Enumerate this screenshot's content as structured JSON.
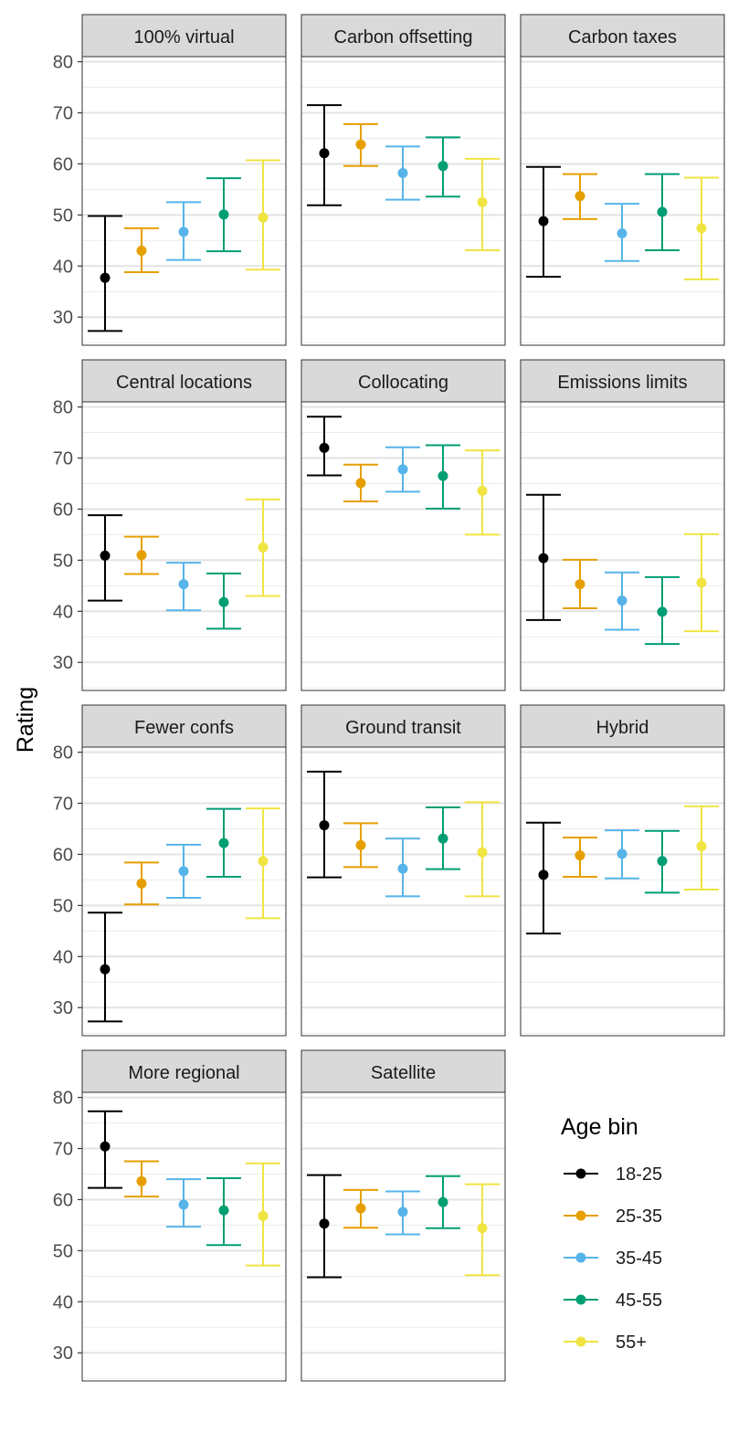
{
  "chart_data": {
    "type": "errorbar-facet",
    "ylabel": "Rating",
    "xlabel": "",
    "ylim": [
      24.5,
      81
    ],
    "yticks": [
      30,
      40,
      50,
      60,
      70,
      80
    ],
    "grid": true,
    "legend": {
      "title": "Age bin",
      "position": "bottom-right",
      "entries": [
        "18-25",
        "25-35",
        "35-45",
        "45-55",
        "55+"
      ]
    },
    "series_colors": [
      "#000000",
      "#E69F00",
      "#56B4E9",
      "#009E73",
      "#F0E442"
    ],
    "panels": [
      {
        "title": "100% virtual",
        "series": [
          {
            "name": "18-25",
            "mean": 37.7,
            "lo": 27.3,
            "hi": 49.8
          },
          {
            "name": "25-35",
            "mean": 43.0,
            "lo": 38.8,
            "hi": 47.4
          },
          {
            "name": "35-45",
            "mean": 46.7,
            "lo": 41.2,
            "hi": 52.5
          },
          {
            "name": "45-55",
            "mean": 50.1,
            "lo": 42.9,
            "hi": 57.2
          },
          {
            "name": "55+",
            "mean": 49.5,
            "lo": 39.3,
            "hi": 60.7
          }
        ]
      },
      {
        "title": "Carbon offsetting",
        "series": [
          {
            "name": "18-25",
            "mean": 62.1,
            "lo": 51.9,
            "hi": 71.5
          },
          {
            "name": "25-35",
            "mean": 63.8,
            "lo": 59.6,
            "hi": 67.8
          },
          {
            "name": "35-45",
            "mean": 58.2,
            "lo": 53.0,
            "hi": 63.4
          },
          {
            "name": "45-55",
            "mean": 59.6,
            "lo": 53.6,
            "hi": 65.2
          },
          {
            "name": "55+",
            "mean": 52.5,
            "lo": 43.1,
            "hi": 61.0
          }
        ]
      },
      {
        "title": "Carbon taxes",
        "series": [
          {
            "name": "18-25",
            "mean": 48.8,
            "lo": 37.9,
            "hi": 59.4
          },
          {
            "name": "25-35",
            "mean": 53.7,
            "lo": 49.2,
            "hi": 58.0
          },
          {
            "name": "35-45",
            "mean": 46.4,
            "lo": 41.0,
            "hi": 52.2
          },
          {
            "name": "45-55",
            "mean": 50.6,
            "lo": 43.1,
            "hi": 58.0
          },
          {
            "name": "55+",
            "mean": 47.4,
            "lo": 37.4,
            "hi": 57.3
          }
        ]
      },
      {
        "title": "Central locations",
        "series": [
          {
            "name": "18-25",
            "mean": 50.9,
            "lo": 42.1,
            "hi": 58.8
          },
          {
            "name": "25-35",
            "mean": 51.0,
            "lo": 47.3,
            "hi": 54.6
          },
          {
            "name": "35-45",
            "mean": 45.3,
            "lo": 40.2,
            "hi": 49.5
          },
          {
            "name": "45-55",
            "mean": 41.8,
            "lo": 36.6,
            "hi": 47.4
          },
          {
            "name": "55+",
            "mean": 52.5,
            "lo": 43.0,
            "hi": 61.9
          }
        ]
      },
      {
        "title": "Collocating",
        "series": [
          {
            "name": "18-25",
            "mean": 72.0,
            "lo": 66.6,
            "hi": 78.1
          },
          {
            "name": "25-35",
            "mean": 65.1,
            "lo": 61.5,
            "hi": 68.7
          },
          {
            "name": "35-45",
            "mean": 67.8,
            "lo": 63.4,
            "hi": 72.1
          },
          {
            "name": "45-55",
            "mean": 66.5,
            "lo": 60.1,
            "hi": 72.5
          },
          {
            "name": "55+",
            "mean": 63.6,
            "lo": 55.0,
            "hi": 71.5
          }
        ]
      },
      {
        "title": "Emissions limits",
        "series": [
          {
            "name": "18-25",
            "mean": 50.4,
            "lo": 38.3,
            "hi": 62.8
          },
          {
            "name": "25-35",
            "mean": 45.3,
            "lo": 40.6,
            "hi": 50.1
          },
          {
            "name": "35-45",
            "mean": 42.1,
            "lo": 36.4,
            "hi": 47.6
          },
          {
            "name": "45-55",
            "mean": 39.9,
            "lo": 33.6,
            "hi": 46.7
          },
          {
            "name": "55+",
            "mean": 45.6,
            "lo": 36.1,
            "hi": 55.1
          }
        ]
      },
      {
        "title": "Fewer confs",
        "series": [
          {
            "name": "18-25",
            "mean": 37.5,
            "lo": 27.3,
            "hi": 48.6
          },
          {
            "name": "25-35",
            "mean": 54.3,
            "lo": 50.2,
            "hi": 58.4
          },
          {
            "name": "35-45",
            "mean": 56.7,
            "lo": 51.5,
            "hi": 61.9
          },
          {
            "name": "45-55",
            "mean": 62.2,
            "lo": 55.6,
            "hi": 68.9
          },
          {
            "name": "55+",
            "mean": 58.7,
            "lo": 47.5,
            "hi": 69.0
          }
        ]
      },
      {
        "title": "Ground transit",
        "series": [
          {
            "name": "18-25",
            "mean": 65.7,
            "lo": 55.5,
            "hi": 76.2
          },
          {
            "name": "25-35",
            "mean": 61.8,
            "lo": 57.5,
            "hi": 66.1
          },
          {
            "name": "35-45",
            "mean": 57.2,
            "lo": 51.8,
            "hi": 63.1
          },
          {
            "name": "45-55",
            "mean": 63.1,
            "lo": 57.1,
            "hi": 69.2
          },
          {
            "name": "55+",
            "mean": 60.4,
            "lo": 51.8,
            "hi": 70.2
          }
        ]
      },
      {
        "title": "Hybrid",
        "series": [
          {
            "name": "18-25",
            "mean": 56.0,
            "lo": 44.5,
            "hi": 66.2
          },
          {
            "name": "25-35",
            "mean": 59.8,
            "lo": 55.6,
            "hi": 63.3
          },
          {
            "name": "35-45",
            "mean": 60.1,
            "lo": 55.3,
            "hi": 64.7
          },
          {
            "name": "45-55",
            "mean": 58.7,
            "lo": 52.5,
            "hi": 64.6
          },
          {
            "name": "55+",
            "mean": 61.6,
            "lo": 53.1,
            "hi": 69.4
          }
        ]
      },
      {
        "title": "More regional",
        "series": [
          {
            "name": "18-25",
            "mean": 70.4,
            "lo": 62.3,
            "hi": 77.3
          },
          {
            "name": "25-35",
            "mean": 63.6,
            "lo": 60.6,
            "hi": 67.5
          },
          {
            "name": "35-45",
            "mean": 59.0,
            "lo": 54.7,
            "hi": 64.0
          },
          {
            "name": "45-55",
            "mean": 57.9,
            "lo": 51.1,
            "hi": 64.2
          },
          {
            "name": "55+",
            "mean": 56.8,
            "lo": 47.1,
            "hi": 67.1
          }
        ]
      },
      {
        "title": "Satellite",
        "series": [
          {
            "name": "18-25",
            "mean": 55.3,
            "lo": 44.8,
            "hi": 64.8
          },
          {
            "name": "25-35",
            "mean": 58.3,
            "lo": 54.5,
            "hi": 61.9
          },
          {
            "name": "35-45",
            "mean": 57.6,
            "lo": 53.2,
            "hi": 61.6
          },
          {
            "name": "45-55",
            "mean": 59.5,
            "lo": 54.4,
            "hi": 64.6
          },
          {
            "name": "55+",
            "mean": 54.4,
            "lo": 45.2,
            "hi": 63.0
          }
        ]
      }
    ]
  }
}
